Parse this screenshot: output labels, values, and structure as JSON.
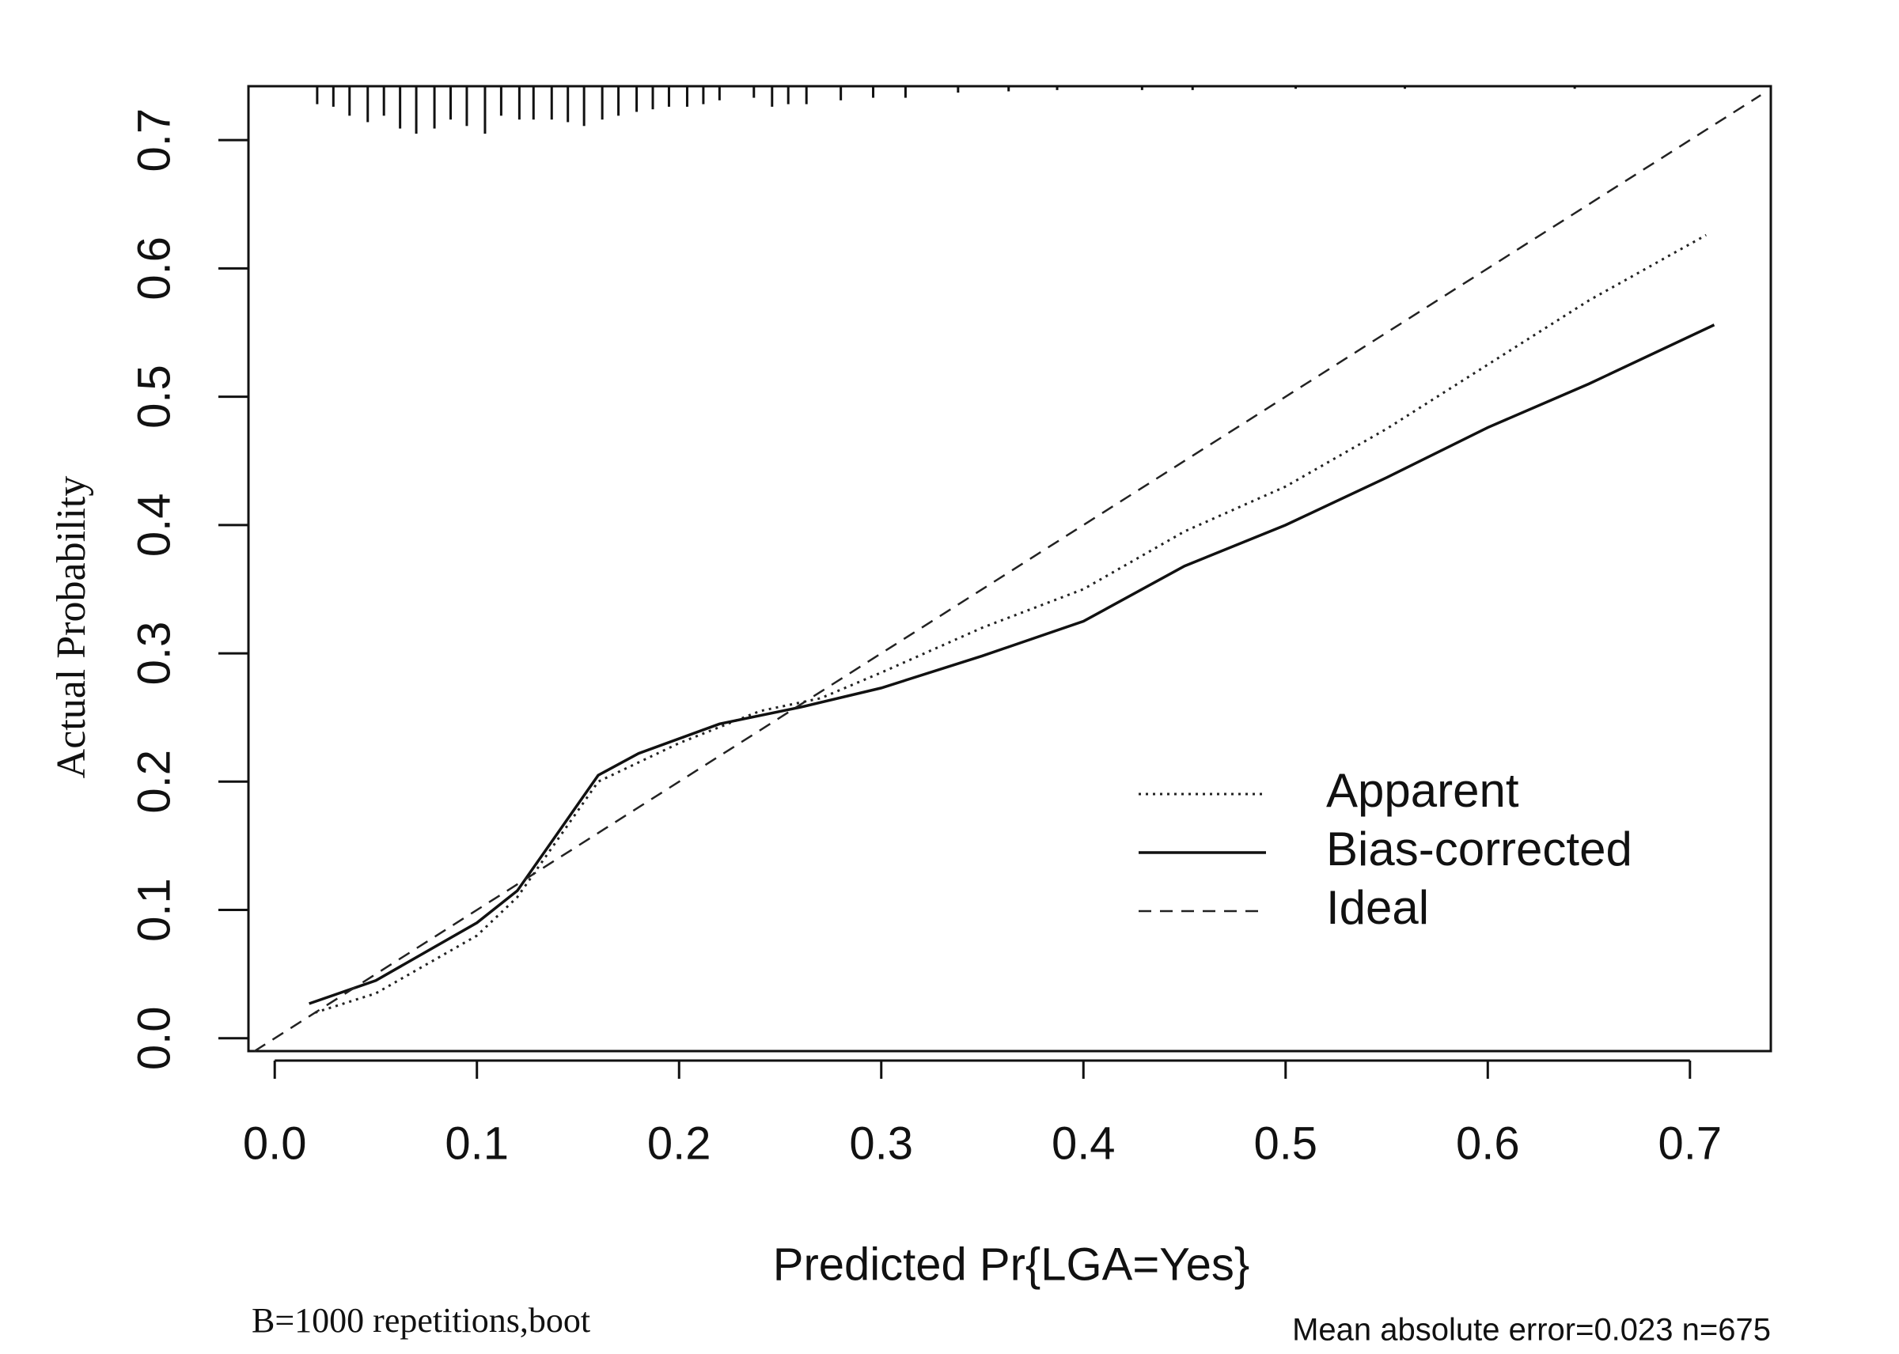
{
  "chart_data": {
    "type": "line",
    "x_label": "Predicted Pr{LGA=Yes}",
    "y_label": "Actual Probability",
    "annotations": [
      "B=1000 repetitions,boot",
      "Mean absolute error=0.023 n=675"
    ],
    "xlim": [
      -0.013,
      0.74
    ],
    "ylim": [
      -0.01,
      0.742
    ],
    "xticks": [
      {
        "value": 0,
        "label": "0.0"
      },
      0.1,
      0.2,
      0.3,
      0.4,
      0.5,
      0.6,
      0.7
    ],
    "yticks": [
      {
        "value": 0,
        "label": "0.0"
      },
      0.1,
      0.2,
      0.3,
      0.4,
      0.5,
      0.6,
      0.7
    ],
    "legend": "lower right",
    "series": [
      {
        "name": "Apparent",
        "color": "#222222",
        "style": "dotted",
        "x": [
          0.02,
          0.05,
          0.1,
          0.12,
          0.16,
          0.2,
          0.24,
          0.27,
          0.3,
          0.35,
          0.4,
          0.45,
          0.5,
          0.55,
          0.6,
          0.65,
          0.708
        ],
        "values": [
          0.02,
          0.035,
          0.08,
          0.11,
          0.2,
          0.23,
          0.255,
          0.265,
          0.285,
          0.32,
          0.35,
          0.395,
          0.43,
          0.475,
          0.525,
          0.575,
          0.626
        ]
      },
      {
        "name": "Bias-corrected",
        "color": "#111111",
        "style": "solid",
        "x": [
          0.017,
          0.05,
          0.1,
          0.12,
          0.14,
          0.16,
          0.18,
          0.22,
          0.26,
          0.3,
          0.35,
          0.4,
          0.45,
          0.5,
          0.55,
          0.6,
          0.65,
          0.712
        ],
        "values": [
          0.027,
          0.045,
          0.09,
          0.115,
          0.16,
          0.205,
          0.222,
          0.245,
          0.258,
          0.273,
          0.298,
          0.325,
          0.368,
          0.4,
          0.437,
          0.476,
          0.51,
          0.556
        ]
      },
      {
        "name": "Ideal",
        "color": "#222222",
        "style": "dashed",
        "x": [
          -0.01,
          0.735
        ],
        "values": [
          -0.01,
          0.735
        ]
      }
    ],
    "rug": {
      "x": [
        0.021,
        0.029,
        0.037,
        0.046,
        0.054,
        0.062,
        0.07,
        0.079,
        0.087,
        0.095,
        0.104,
        0.112,
        0.121,
        0.128,
        0.137,
        0.145,
        0.153,
        0.162,
        0.17,
        0.179,
        0.187,
        0.195,
        0.204,
        0.212,
        0.22,
        0.237,
        0.246,
        0.254,
        0.263,
        0.28,
        0.296,
        0.312,
        0.338,
        0.363,
        0.387,
        0.429,
        0.454,
        0.505,
        0.559,
        0.643
      ],
      "values": [
        0.728,
        0.726,
        0.719,
        0.714,
        0.719,
        0.709,
        0.705,
        0.709,
        0.716,
        0.711,
        0.705,
        0.719,
        0.716,
        0.716,
        0.716,
        0.714,
        0.711,
        0.716,
        0.719,
        0.722,
        0.724,
        0.726,
        0.726,
        0.728,
        0.731,
        0.733,
        0.726,
        0.728,
        0.728,
        0.731,
        0.733,
        0.733,
        0.737,
        0.738,
        0.739,
        0.739,
        0.739,
        0.74,
        0.74,
        0.74
      ]
    }
  }
}
